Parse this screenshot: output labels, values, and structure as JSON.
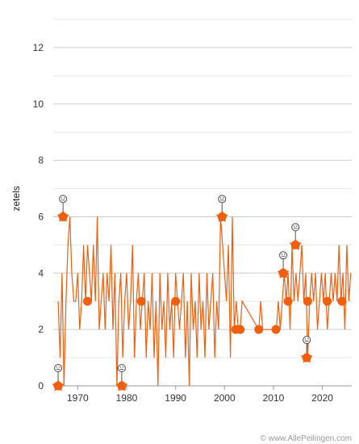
{
  "chart_data": {
    "type": "line",
    "title": "",
    "xlabel": "",
    "ylabel": "zetels",
    "xlim": [
      1965,
      2026
    ],
    "ylim": [
      0,
      13
    ],
    "x_ticks": [
      1970,
      1980,
      1990,
      2000,
      2010,
      2020
    ],
    "y_ticks": [
      0,
      2,
      4,
      6,
      8,
      10,
      12
    ],
    "grid": "horizontal",
    "color": "#ee5f0f",
    "series": [
      {
        "name": "",
        "x": [
          1966.0,
          1966.4,
          1966.8,
          1967.2,
          1967.6,
          1968.0,
          1968.4,
          1968.8,
          1969.2,
          1969.6,
          1970.0,
          1970.4,
          1970.8,
          1971.2,
          1971.6,
          1972.0,
          1972.4,
          1972.8,
          1973.2,
          1973.6,
          1974.0,
          1974.4,
          1974.8,
          1975.2,
          1975.6,
          1976.0,
          1976.4,
          1976.8,
          1977.2,
          1977.6,
          1978.0,
          1978.4,
          1978.8,
          1979.2,
          1979.6,
          1980.0,
          1980.4,
          1980.8,
          1981.2,
          1981.6,
          1982.0,
          1982.4,
          1982.8,
          1983.2,
          1983.6,
          1984.0,
          1984.4,
          1984.8,
          1985.2,
          1985.6,
          1986.0,
          1986.4,
          1986.8,
          1987.2,
          1987.6,
          1988.0,
          1988.4,
          1988.8,
          1989.2,
          1989.6,
          1990.0,
          1990.4,
          1990.8,
          1991.2,
          1991.6,
          1992.0,
          1992.4,
          1992.8,
          1993.2,
          1993.6,
          1994.0,
          1994.4,
          1994.8,
          1995.2,
          1995.6,
          1996.0,
          1996.4,
          1996.8,
          1997.2,
          1997.6,
          1998.0,
          1998.4,
          1998.8,
          1999.2,
          1999.6,
          2000.0,
          2000.4,
          2000.8,
          2001.2,
          2001.6,
          2002.0,
          2002.4,
          2002.8,
          2003.2,
          2003.6,
          2007.0,
          2007.4,
          2007.8,
          2010.6,
          2011.0,
          2011.4,
          2011.8,
          2012.2,
          2012.6,
          2013.0,
          2013.4,
          2013.8,
          2014.2,
          2014.6,
          2015.0,
          2015.4,
          2015.8,
          2016.2,
          2016.6,
          2017.0,
          2017.4,
          2017.8,
          2018.2,
          2018.6,
          2019.0,
          2019.4,
          2019.8,
          2020.2,
          2020.6,
          2021.0,
          2021.4,
          2021.8,
          2022.2,
          2022.6,
          2023.0,
          2023.4,
          2023.8,
          2024.2,
          2024.6,
          2025.0,
          2025.4,
          2025.8
        ],
        "values": [
          3,
          1,
          4,
          0,
          3,
          5,
          6,
          4,
          3,
          3,
          4,
          2,
          3,
          5,
          3,
          5,
          4,
          3,
          5,
          3,
          6,
          2,
          3,
          4,
          2,
          4,
          3,
          5,
          2,
          4,
          0,
          3,
          4,
          1,
          3,
          4,
          2,
          3,
          5,
          1,
          3,
          4,
          2,
          3,
          4,
          1,
          3,
          2,
          4,
          1,
          3,
          0,
          4,
          2,
          3,
          1,
          4,
          2,
          3,
          1,
          4,
          3,
          2,
          3,
          4,
          1,
          3,
          0,
          4,
          2,
          3,
          1,
          4,
          2,
          3,
          1,
          4,
          2,
          3,
          4,
          1,
          3,
          2,
          6,
          5,
          4,
          3,
          5,
          1,
          6,
          2,
          3,
          2,
          2,
          3,
          2,
          3,
          2,
          2,
          3,
          2,
          3,
          4,
          3,
          4,
          2,
          5,
          3,
          4,
          3,
          4,
          5,
          3,
          4,
          1,
          3,
          4,
          3,
          4,
          2,
          3,
          4,
          3,
          4,
          2,
          3,
          4,
          3,
          4,
          3,
          5,
          3,
          4,
          2,
          5,
          3,
          4
        ]
      }
    ],
    "markers": [
      {
        "x": 1966.0,
        "y": 0
      },
      {
        "x": 1967.0,
        "y": 6
      },
      {
        "x": 1979.0,
        "y": 0
      },
      {
        "x": 1999.5,
        "y": 6
      },
      {
        "x": 2002.3,
        "y": 2
      },
      {
        "x": 2003.2,
        "y": 2
      },
      {
        "x": 2007.0,
        "y": 2
      },
      {
        "x": 2010.5,
        "y": 2
      },
      {
        "x": 2012.0,
        "y": 4
      },
      {
        "x": 2014.5,
        "y": 5
      },
      {
        "x": 2016.8,
        "y": 1
      },
      {
        "x": 2013.0,
        "y": 3
      },
      {
        "x": 2017.0,
        "y": 3
      },
      {
        "x": 2021.0,
        "y": 3
      },
      {
        "x": 2024.0,
        "y": 3
      },
      {
        "x": 1972.0,
        "y": 3
      },
      {
        "x": 1983.0,
        "y": 3
      },
      {
        "x": 1990.0,
        "y": 3
      }
    ],
    "pointer_icons": [
      {
        "x": 1966.0,
        "y": 0,
        "icon": "smiley-icon"
      },
      {
        "x": 1967.0,
        "y": 6,
        "icon": "smiley-icon"
      },
      {
        "x": 1979.0,
        "y": 0,
        "icon": "smiley-icon"
      },
      {
        "x": 1999.5,
        "y": 6,
        "icon": "smiley-icon"
      },
      {
        "x": 2012.0,
        "y": 4,
        "icon": "smiley-icon"
      },
      {
        "x": 2014.5,
        "y": 5,
        "icon": "smiley-icon"
      },
      {
        "x": 2016.8,
        "y": 1,
        "icon": "smiley-icon"
      }
    ]
  },
  "credit": "© www.AllePeilingen.com"
}
